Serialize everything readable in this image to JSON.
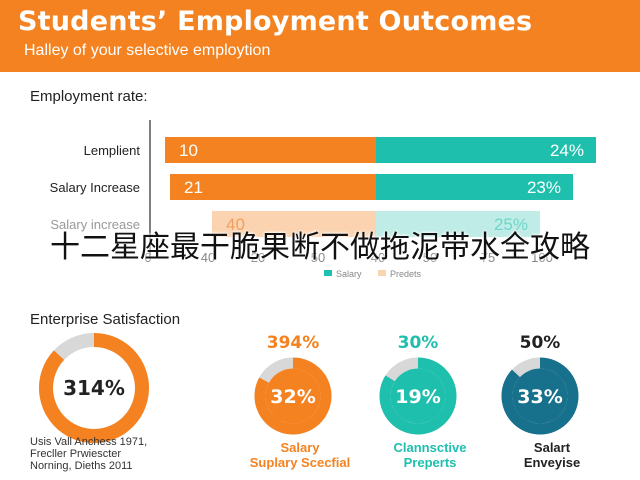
{
  "header": {
    "title": "Students’ Employment Outcomes",
    "subtitle": "Halley of your selective employtion"
  },
  "employment": {
    "section_title": "Employment rate:",
    "legend": [
      "Salary",
      "Predets"
    ]
  },
  "chart_data": [
    {
      "type": "bar",
      "title": "Employment rate:",
      "categories": [
        "Lemplient",
        "Salary Increase",
        "Salary increase"
      ],
      "series": [
        {
          "name": "",
          "color": "#f58220",
          "labels": [
            "10",
            "21",
            "40"
          ]
        },
        {
          "name": "",
          "color": "#1fbfae",
          "labels": [
            "24%",
            "23%",
            "25%"
          ]
        }
      ],
      "x_tick_labels": [
        "0",
        "40",
        "20",
        "50",
        "40",
        "50",
        "75",
        "100"
      ],
      "legend": [
        "Salary",
        "Predets"
      ],
      "legend_position": "bottom",
      "grid": false
    },
    {
      "type": "pie",
      "title": "Enterprise Satisfaction",
      "gauges": [
        {
          "center_label": "314%",
          "top_label": "",
          "bottom_label": "",
          "value": 0.87,
          "color": "#f58220"
        },
        {
          "center_label": "32%",
          "top_label": "394%",
          "bottom_label": [
            "Salary",
            "Suplary Scecfial"
          ],
          "value": 0.83,
          "color": "#f58220"
        },
        {
          "center_label": "19%",
          "top_label": "30%",
          "bottom_label": [
            "Clannsctive",
            "Preperts"
          ],
          "value": 0.84,
          "color": "#1fbfae"
        },
        {
          "center_label": "33%",
          "top_label": "50%",
          "bottom_label": [
            "Salart",
            "Enveyise"
          ],
          "value": 0.87,
          "color": "#17708c"
        }
      ]
    }
  ],
  "enterprise": {
    "section_title": "Enterprise Satisfaction"
  },
  "footnote": [
    "Usis Vall Anchess 1971,",
    "Frecller Prwiescter",
    "Norning, Dieths 2011"
  ],
  "overlay_text": "十二星座最干脆果断不做拖泥带水全攻略",
  "colors": {
    "orange": "#f58220",
    "teal": "#1fbfae",
    "navy": "#17708c",
    "light_orange": "#fbd3b0",
    "light_teal": "#bfece6"
  }
}
